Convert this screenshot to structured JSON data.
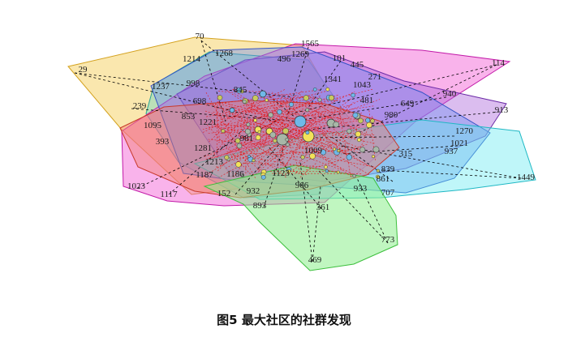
{
  "caption": "图5  最大社区的社群发现",
  "network": {
    "communities": [
      {
        "name": "orange",
        "fill": "#f6d36b",
        "stroke": "#d4a21f"
      },
      {
        "name": "teal",
        "fill": "#6fd6c6",
        "stroke": "#2aa392"
      },
      {
        "name": "magenta",
        "fill": "#f04bd0",
        "stroke": "#c21aa8"
      },
      {
        "name": "purple",
        "fill": "#a45bd8",
        "stroke": "#6b2aa6"
      },
      {
        "name": "blue",
        "fill": "#6f8ef0",
        "stroke": "#3553c6"
      },
      {
        "name": "cyan",
        "fill": "#5fe9ef",
        "stroke": "#1fb8c4"
      },
      {
        "name": "red",
        "fill": "#f27b6a",
        "stroke": "#c8392c"
      },
      {
        "name": "green",
        "fill": "#8cef8c",
        "stroke": "#3cbf3c"
      }
    ],
    "labels": [
      "70",
      "1565",
      "1268",
      "1214",
      "29",
      "1237",
      "998",
      "239",
      "1095",
      "393",
      "1023",
      "1117",
      "1281",
      "1187",
      "1213",
      "1186",
      "152",
      "932",
      "893",
      "861",
      "707",
      "1449",
      "1021",
      "1270",
      "913",
      "940",
      "114",
      "445",
      "271",
      "101",
      "1341",
      "1043",
      "481",
      "649",
      "980",
      "315",
      "937",
      "839",
      "773",
      "469",
      "361",
      "933",
      "966",
      "1123",
      "1221",
      "698",
      "1009",
      "1269",
      "496",
      "845",
      "853",
      "981"
    ],
    "edge_color": "#e41a1c",
    "link_color": "#000000"
  }
}
